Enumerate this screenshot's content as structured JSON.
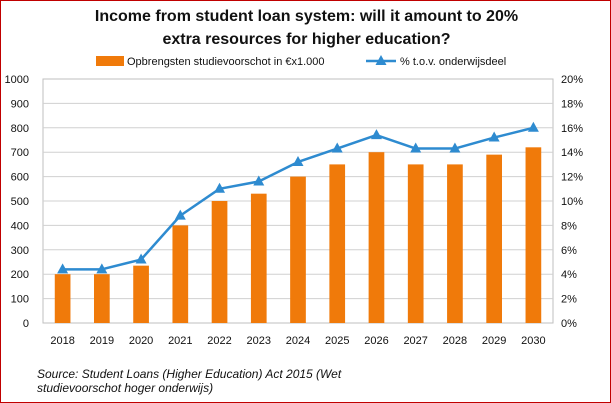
{
  "chart_data": {
    "type": "bar",
    "title": "Income from student loan system: will it amount to 20%\nextra resources for higher education?",
    "categories": [
      "2018",
      "2019",
      "2020",
      "2021",
      "2022",
      "2023",
      "2024",
      "2025",
      "2026",
      "2027",
      "2028",
      "2029",
      "2030"
    ],
    "series": [
      {
        "name": "Opbrengsten studievoorschot in €x1.000",
        "type": "bar",
        "axis": "left",
        "color": "#f07a0a",
        "values": [
          200,
          200,
          235,
          400,
          500,
          530,
          600,
          650,
          700,
          650,
          650,
          690,
          720
        ]
      },
      {
        "name": "% t.o.v. onderwijsdeel",
        "type": "line",
        "axis": "right",
        "marker": "triangle",
        "color": "#2e8bd0",
        "values": [
          4.4,
          4.4,
          5.2,
          8.8,
          11.0,
          11.6,
          13.2,
          14.3,
          15.4,
          14.3,
          14.3,
          15.2,
          16.0
        ]
      }
    ],
    "y_left": {
      "lim": [
        0,
        1000
      ],
      "ticks": [
        "0",
        "100",
        "200",
        "300",
        "400",
        "500",
        "600",
        "700",
        "800",
        "900",
        "1000"
      ]
    },
    "y_right": {
      "lim": [
        0,
        20
      ],
      "ticks": [
        "0%",
        "2%",
        "4%",
        "6%",
        "8%",
        "10%",
        "12%",
        "14%",
        "16%",
        "18%",
        "20%"
      ]
    },
    "grid": true,
    "legend_position": "top"
  },
  "source_note": "Source: Student Loans (Higher Education) Act 2015 (Wet studievoorschot hoger onderwijs)"
}
